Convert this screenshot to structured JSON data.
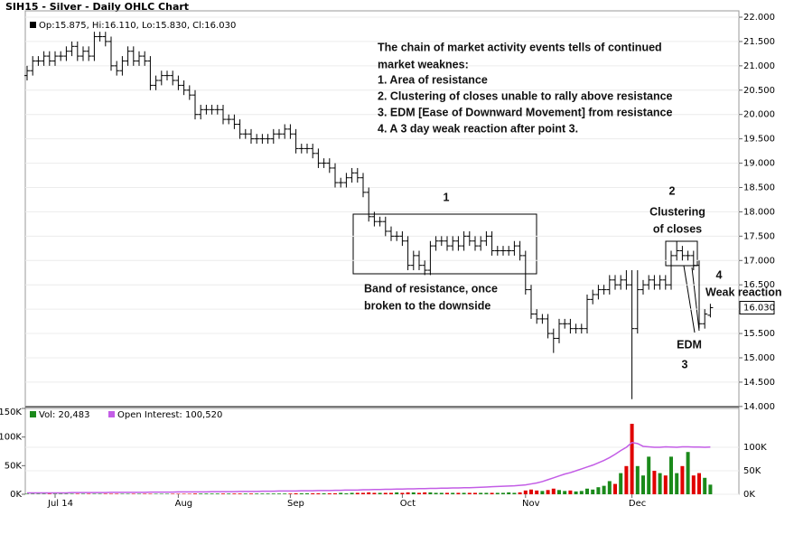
{
  "chart_data": [
    {
      "type": "ohlc",
      "title": "SIH15 - Silver - Daily OHLC Chart",
      "legend_text": "Op:15.875, Hi:16.110, Lo:15.830, Cl:16.030",
      "last_label": "16.030",
      "color": "#000000",
      "ylim": [
        13.96,
        22.13
      ],
      "yticks": [
        {
          "value": 14,
          "label": "14.000"
        },
        {
          "value": 14.5,
          "label": "14.500"
        },
        {
          "value": 15,
          "label": "15.000"
        },
        {
          "value": 15.5,
          "label": "15.500"
        },
        {
          "value": 16,
          "label": "16.000"
        },
        {
          "value": 16.5,
          "label": "16.500"
        },
        {
          "value": 17,
          "label": "17.000"
        },
        {
          "value": 17.5,
          "label": "17.500"
        },
        {
          "value": 18,
          "label": "18.000"
        },
        {
          "value": 18.5,
          "label": "18.500"
        },
        {
          "value": 19,
          "label": "19.000"
        },
        {
          "value": 19.5,
          "label": "19.500"
        },
        {
          "value": 20,
          "label": "20.000"
        },
        {
          "value": 20.5,
          "label": "20.500"
        },
        {
          "value": 21,
          "label": "21.000"
        },
        {
          "value": 21.5,
          "label": "21.500"
        },
        {
          "value": 22,
          "label": "22.000"
        }
      ],
      "grid": true,
      "open": [
        20.8,
        20.9,
        21.1,
        21.1,
        21.2,
        21.1,
        21.2,
        21.2,
        21.3,
        21.4,
        21.2,
        21.3,
        21.2,
        21.6,
        21.6,
        21.5,
        21.0,
        20.9,
        21.1,
        21.3,
        21.1,
        21.2,
        21.1,
        20.6,
        20.7,
        20.8,
        20.8,
        20.7,
        20.6,
        20.5,
        20.4,
        20.0,
        20.1,
        20.1,
        20.1,
        20.1,
        19.9,
        19.9,
        19.8,
        19.6,
        19.6,
        19.5,
        19.5,
        19.5,
        19.5,
        19.6,
        19.6,
        19.7,
        19.6,
        19.3,
        19.3,
        19.3,
        19.2,
        19.0,
        19.0,
        18.9,
        18.6,
        18.6,
        18.7,
        18.8,
        18.7,
        18.4,
        17.9,
        17.8,
        17.8,
        17.6,
        17.5,
        17.5,
        17.4,
        16.9,
        17.1,
        16.9,
        16.8,
        17.3,
        17.4,
        17.4,
        17.3,
        17.4,
        17.3,
        17.5,
        17.4,
        17.3,
        17.4,
        17.5,
        17.2,
        17.2,
        17.2,
        17.2,
        17.3,
        17.1,
        16.4,
        15.9,
        15.8,
        15.8,
        15.5,
        15.4,
        15.7,
        15.7,
        15.6,
        15.6,
        15.6,
        16.2,
        16.3,
        16.4,
        16.4,
        16.6,
        16.5,
        16.6,
        16.5,
        15.6,
        16.4,
        16.5,
        16.6,
        16.5,
        16.6,
        16.5,
        17.1,
        17.2,
        17.1,
        17.1,
        16.9,
        15.7,
        15.875
      ],
      "high": [
        21.0,
        21.2,
        21.2,
        21.3,
        21.3,
        21.3,
        21.3,
        21.4,
        21.5,
        21.5,
        21.4,
        21.4,
        21.7,
        21.7,
        21.7,
        21.6,
        21.1,
        21.2,
        21.4,
        21.4,
        21.3,
        21.3,
        21.2,
        20.8,
        20.9,
        20.9,
        20.9,
        20.8,
        20.7,
        20.6,
        20.5,
        20.2,
        20.2,
        20.2,
        20.2,
        20.2,
        20.0,
        20.0,
        19.9,
        19.7,
        19.7,
        19.6,
        19.6,
        19.6,
        19.7,
        19.7,
        19.8,
        19.8,
        19.7,
        19.4,
        19.4,
        19.4,
        19.3,
        19.1,
        19.1,
        19.0,
        18.7,
        18.8,
        18.9,
        18.9,
        18.8,
        18.5,
        18.0,
        17.9,
        17.9,
        17.7,
        17.6,
        17.6,
        17.5,
        17.2,
        17.2,
        17.0,
        17.4,
        17.5,
        17.5,
        17.5,
        17.5,
        17.5,
        17.6,
        17.6,
        17.5,
        17.5,
        17.6,
        17.6,
        17.3,
        17.3,
        17.3,
        17.4,
        17.4,
        17.2,
        16.5,
        16.0,
        15.9,
        15.9,
        15.6,
        15.8,
        15.8,
        15.8,
        15.7,
        15.7,
        16.3,
        16.4,
        16.5,
        16.5,
        16.7,
        16.7,
        16.7,
        16.8,
        16.8,
        16.8,
        16.6,
        16.7,
        16.7,
        16.7,
        16.7,
        17.2,
        17.4,
        17.3,
        17.2,
        17.2,
        17.0,
        16.0,
        16.11
      ],
      "low": [
        20.7,
        20.8,
        21.0,
        21.0,
        21.0,
        21.0,
        21.1,
        21.1,
        21.2,
        21.1,
        21.1,
        21.1,
        21.1,
        21.5,
        21.4,
        20.9,
        20.8,
        20.8,
        21.0,
        21.0,
        21.0,
        21.0,
        20.5,
        20.5,
        20.6,
        20.7,
        20.6,
        20.5,
        20.4,
        20.3,
        19.9,
        19.9,
        20.0,
        20.0,
        20.0,
        19.8,
        19.8,
        19.7,
        19.5,
        19.5,
        19.4,
        19.4,
        19.4,
        19.4,
        19.4,
        19.5,
        19.5,
        19.5,
        19.2,
        19.2,
        19.2,
        19.1,
        18.9,
        18.9,
        18.8,
        18.5,
        18.5,
        18.5,
        18.6,
        18.6,
        18.3,
        17.8,
        17.7,
        17.7,
        17.5,
        17.4,
        17.4,
        17.3,
        16.8,
        16.8,
        16.8,
        16.7,
        16.7,
        17.2,
        17.3,
        17.2,
        17.2,
        17.2,
        17.2,
        17.3,
        17.2,
        17.2,
        17.3,
        17.1,
        17.1,
        17.1,
        17.1,
        17.1,
        17.0,
        16.3,
        15.8,
        15.7,
        15.7,
        15.4,
        15.1,
        15.3,
        15.6,
        15.5,
        15.5,
        15.5,
        15.5,
        16.1,
        16.2,
        16.3,
        16.3,
        16.4,
        16.4,
        16.4,
        14.15,
        15.5,
        16.3,
        16.4,
        16.4,
        16.4,
        16.4,
        16.4,
        17.0,
        17.0,
        17.0,
        16.8,
        15.6,
        15.6,
        15.83
      ],
      "close": [
        20.9,
        21.1,
        21.1,
        21.2,
        21.1,
        21.2,
        21.2,
        21.3,
        21.4,
        21.2,
        21.3,
        21.2,
        21.6,
        21.6,
        21.5,
        21.0,
        20.9,
        21.1,
        21.3,
        21.1,
        21.2,
        21.1,
        20.6,
        20.7,
        20.8,
        20.8,
        20.7,
        20.6,
        20.5,
        20.4,
        20.0,
        20.1,
        20.1,
        20.1,
        20.1,
        19.9,
        19.9,
        19.8,
        19.6,
        19.6,
        19.5,
        19.5,
        19.5,
        19.5,
        19.6,
        19.6,
        19.7,
        19.6,
        19.3,
        19.3,
        19.3,
        19.2,
        19.0,
        19.0,
        18.9,
        18.6,
        18.6,
        18.7,
        18.8,
        18.7,
        18.4,
        17.9,
        17.8,
        17.8,
        17.6,
        17.5,
        17.5,
        17.4,
        16.9,
        17.1,
        16.9,
        16.8,
        17.3,
        17.4,
        17.4,
        17.3,
        17.4,
        17.3,
        17.5,
        17.4,
        17.3,
        17.4,
        17.5,
        17.2,
        17.2,
        17.2,
        17.2,
        17.3,
        17.1,
        16.4,
        15.9,
        15.8,
        15.8,
        15.5,
        15.4,
        15.7,
        15.7,
        15.6,
        15.6,
        15.6,
        16.2,
        16.3,
        16.4,
        16.4,
        16.6,
        16.5,
        16.6,
        16.5,
        15.6,
        16.4,
        16.5,
        16.6,
        16.5,
        16.6,
        16.5,
        17.1,
        17.2,
        17.1,
        17.1,
        16.9,
        15.7,
        15.9,
        16.03
      ],
      "annotations": [
        "The chain of market activity events tells of continued",
        "market weaknes:",
        "1. Area of resistance",
        "2. Clustering of closes unable to rally above resistance",
        "3. EDM [Ease of Downward Movement] from resistance",
        "4. A 3 day weak reaction after point 3.",
        "1",
        "Band of resistance, once",
        "broken to the downside",
        "2",
        "Clustering",
        "of closes",
        "4",
        "Weak reaction",
        "EDM",
        "3"
      ]
    },
    {
      "type": "bar",
      "categories": [
        null,
        null,
        null,
        null,
        null,
        "Jul 14",
        null,
        null,
        null,
        null,
        null,
        null,
        null,
        null,
        null,
        null,
        null,
        null,
        null,
        null,
        null,
        null,
        null,
        null,
        null,
        null,
        null,
        "Aug",
        null,
        null,
        null,
        null,
        null,
        null,
        null,
        null,
        null,
        null,
        null,
        null,
        null,
        null,
        null,
        null,
        null,
        null,
        null,
        "Sep",
        null,
        null,
        null,
        null,
        null,
        null,
        null,
        null,
        null,
        null,
        null,
        null,
        null,
        null,
        null,
        null,
        null,
        null,
        null,
        "Oct",
        null,
        null,
        null,
        null,
        null,
        null,
        null,
        null,
        null,
        null,
        null,
        null,
        null,
        null,
        null,
        null,
        null,
        null,
        null,
        null,
        null,
        "Nov",
        null,
        null,
        null,
        null,
        null,
        null,
        null,
        null,
        null,
        null,
        null,
        null,
        null,
        null,
        null,
        null,
        null,
        null,
        "Dec",
        null,
        null,
        null,
        null,
        null,
        null,
        null,
        null,
        null,
        null,
        null,
        null,
        null,
        null
      ],
      "ylim": [
        0,
        150000
      ],
      "yticks": [
        {
          "value": 0,
          "label": "0K"
        },
        {
          "value": 50000,
          "label": "50K"
        },
        {
          "value": 100000,
          "label": "100K"
        },
        {
          "value": 150000,
          "label": "150K"
        }
      ],
      "y2lim": [
        0,
        182700
      ],
      "y2ticks": [
        {
          "value": 0,
          "label": "0K"
        },
        {
          "value": 50000,
          "label": "50K"
        },
        {
          "value": 100000,
          "label": "100K"
        }
      ],
      "series": [
        {
          "name": "Vol: 20,483",
          "type": "bar",
          "axis": "y2",
          "up_color": "#1b8a1b",
          "down_color": "#e00000",
          "values": [
            1000,
            1000,
            1000,
            1000,
            1000,
            1000,
            1000,
            1000,
            1000,
            1000,
            1000,
            1000,
            1000,
            1000,
            1000,
            1000,
            1000,
            1000,
            1000,
            1000,
            1000,
            1000,
            1000,
            1000,
            1000,
            1000,
            1000,
            1000,
            1000,
            1000,
            1500,
            1500,
            1500,
            1500,
            1500,
            1500,
            1500,
            1500,
            1500,
            1500,
            1500,
            1500,
            1500,
            1500,
            1500,
            1500,
            1500,
            1500,
            2000,
            2000,
            2000,
            2000,
            2000,
            2000,
            2000,
            2000,
            3000,
            2000,
            3000,
            3000,
            3000,
            4000,
            3000,
            3000,
            3000,
            3000,
            4000,
            3000,
            4000,
            4000,
            3000,
            4000,
            4000,
            3000,
            3000,
            3000,
            3000,
            3000,
            3000,
            3000,
            3000,
            3000,
            3000,
            3000,
            3000,
            3000,
            4000,
            3000,
            4000,
            8000,
            10000,
            8000,
            7000,
            9000,
            12000,
            9000,
            7000,
            8000,
            6000,
            7000,
            12000,
            10000,
            15000,
            18000,
            28000,
            22000,
            45000,
            60000,
            150000,
            60000,
            40000,
            80000,
            50000,
            45000,
            40000,
            80000,
            45000,
            60000,
            90000,
            40000,
            45000,
            35000,
            20483
          ]
        },
        {
          "name": "Open Interest: 100,520",
          "type": "line",
          "axis": "y2",
          "color": "#c35de6",
          "values": [
            3000,
            3000,
            3000,
            3000,
            3000,
            3000,
            3000,
            3000,
            3500,
            3500,
            3500,
            3500,
            3500,
            3500,
            3500,
            4000,
            4000,
            4000,
            4000,
            4000,
            4000,
            4000,
            4500,
            4500,
            4500,
            4500,
            4500,
            5000,
            5000,
            5000,
            5000,
            5000,
            5000,
            5500,
            5500,
            5500,
            5500,
            5500,
            6000,
            6000,
            6000,
            6000,
            6500,
            6500,
            6500,
            7000,
            7000,
            7000,
            7000,
            7500,
            7500,
            7500,
            8000,
            8000,
            8000,
            8500,
            8500,
            9000,
            9000,
            9000,
            9500,
            9500,
            10000,
            10000,
            10500,
            10500,
            11000,
            11000,
            11500,
            11500,
            12000,
            12000,
            12500,
            12500,
            13000,
            13000,
            13500,
            13500,
            14000,
            14000,
            14500,
            15000,
            15500,
            16000,
            16500,
            17000,
            17500,
            18000,
            19000,
            20000,
            22000,
            24000,
            27000,
            31000,
            35000,
            39000,
            43000,
            46000,
            50000,
            54000,
            58000,
            62000,
            67000,
            72000,
            78000,
            85000,
            93000,
            100000,
            110000,
            108000,
            102000,
            101000,
            100000,
            100000,
            101000,
            100500,
            100000,
            101000,
            101000,
            100500,
            100500,
            100000,
            100520
          ]
        }
      ]
    }
  ]
}
